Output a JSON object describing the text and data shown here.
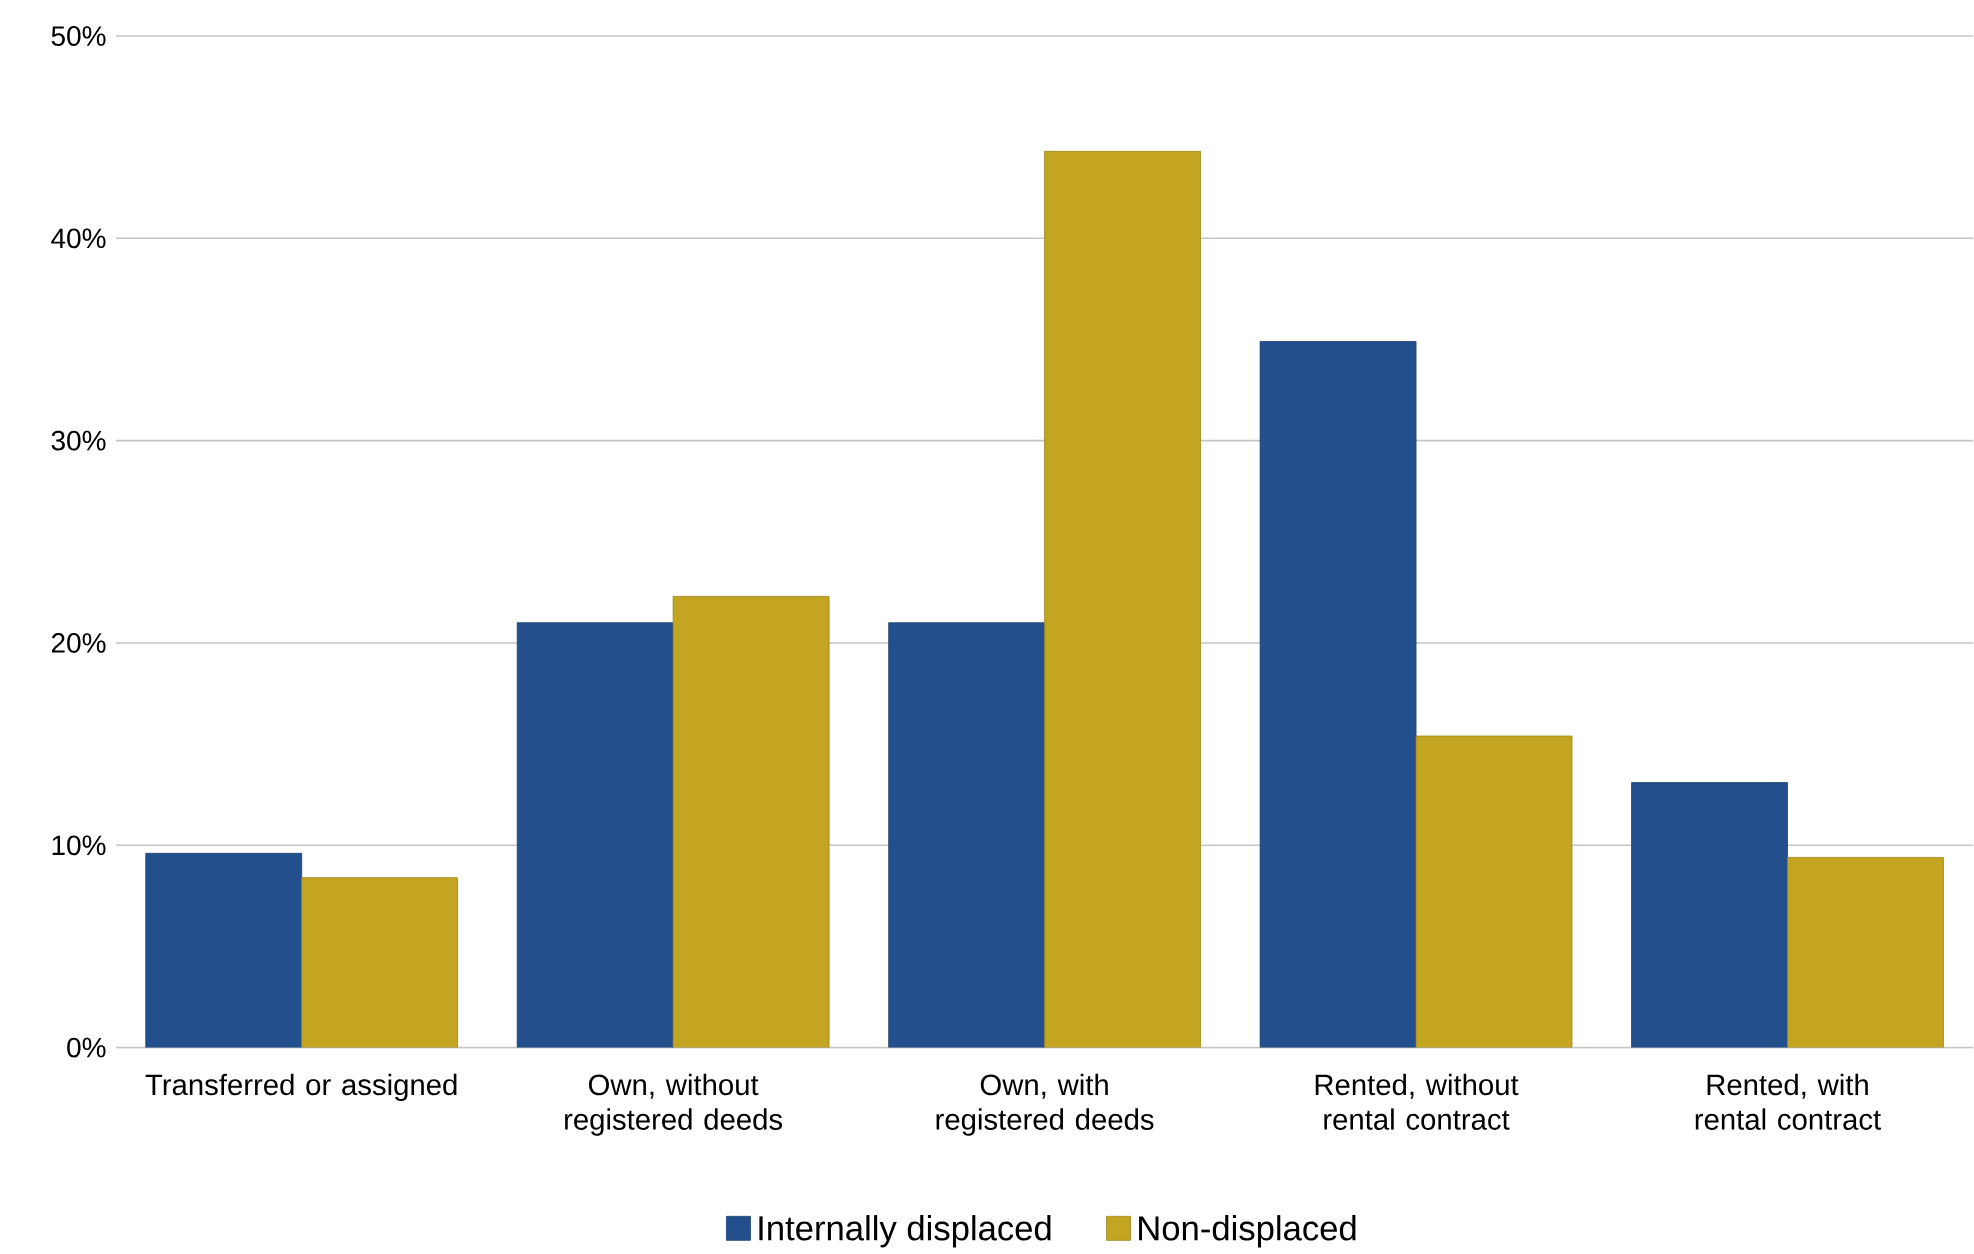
{
  "chart_data": {
    "type": "bar",
    "categories": [
      "Transferred or assigned",
      "Own, without registered deeds",
      "Own, with registered deeds",
      "Rented, without rental contract",
      "Rented, with rental contract"
    ],
    "series": [
      {
        "name": "Internally displaced",
        "color": "#23508c",
        "values": [
          9.6,
          21.0,
          21.0,
          34.9,
          13.1
        ]
      },
      {
        "name": "Non-displaced",
        "color": "#c4a521",
        "values": [
          8.4,
          22.3,
          44.3,
          15.4,
          9.4
        ]
      }
    ],
    "ylim": [
      0,
      50
    ],
    "yticks": [
      {
        "value": 0,
        "label": "0%"
      },
      {
        "value": 10,
        "label": "10%"
      },
      {
        "value": 20,
        "label": "20%"
      },
      {
        "value": 30,
        "label": "30%"
      },
      {
        "value": 40,
        "label": "40%"
      },
      {
        "value": 50,
        "label": "50%"
      }
    ],
    "grid": "y",
    "legend": "bottom"
  }
}
